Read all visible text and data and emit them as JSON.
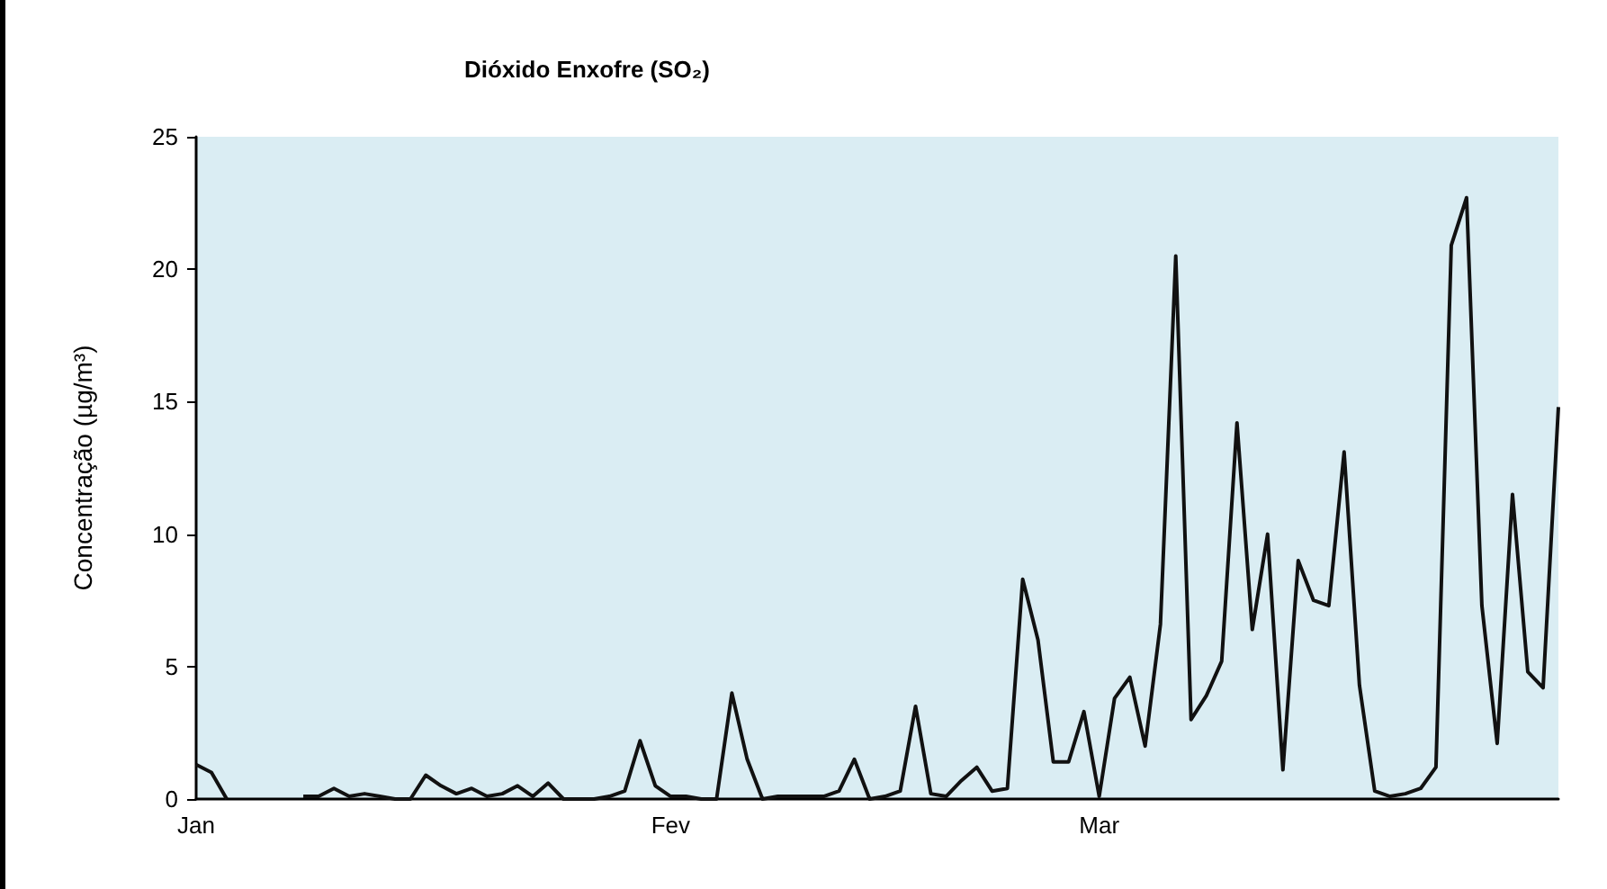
{
  "chart_data": {
    "type": "line",
    "title": "Dióxido Enxofre (SO₂)",
    "ylabel": "Concentração (µg/m³)",
    "categories": [
      "Jan",
      null,
      null,
      null,
      null,
      null,
      null,
      null,
      null,
      null,
      null,
      null,
      null,
      null,
      null,
      null,
      null,
      null,
      null,
      null,
      null,
      null,
      null,
      null,
      null,
      null,
      null,
      null,
      null,
      null,
      null,
      "Fev",
      null,
      null,
      null,
      null,
      null,
      null,
      null,
      null,
      null,
      null,
      null,
      null,
      null,
      null,
      null,
      null,
      null,
      null,
      null,
      null,
      null,
      null,
      null,
      null,
      null,
      null,
      null,
      "Mar",
      null,
      null,
      null,
      null,
      null,
      null,
      null,
      null,
      null,
      null,
      null,
      null,
      null,
      null,
      null,
      null,
      null,
      null,
      null,
      null,
      null,
      null,
      null,
      null,
      null,
      null,
      null,
      null,
      null,
      null
    ],
    "series": [
      {
        "color": "#111111",
        "values": [
          1.3,
          1.0,
          0,
          null,
          null,
          null,
          null,
          0.1,
          0.1,
          0.4,
          0.1,
          0.2,
          0.1,
          0,
          0,
          0.9,
          0.5,
          0.2,
          0.4,
          0.1,
          0.2,
          0.5,
          0.1,
          0.6,
          0,
          0,
          0,
          0.1,
          0.3,
          2.2,
          0.5,
          0.1,
          0.1,
          0,
          0,
          4.0,
          1.5,
          0,
          0.1,
          0.1,
          0.1,
          0.1,
          0.3,
          1.5,
          0,
          0.1,
          0.3,
          3.5,
          0.2,
          0.1,
          0.7,
          1.2,
          0.3,
          0.4,
          8.3,
          6.0,
          1.4,
          1.4,
          3.3,
          0.1,
          3.8,
          4.6,
          2.0,
          6.6,
          20.5,
          3.0,
          3.9,
          5.2,
          14.2,
          6.4,
          10.0,
          1.1,
          9.0,
          7.5,
          7.3,
          13.1,
          4.3,
          0.3,
          0.1,
          0.2,
          0.4,
          1.2,
          20.9,
          22.7,
          7.3,
          2.1,
          11.5,
          4.8,
          4.2,
          14.8
        ]
      }
    ],
    "ylim": [
      0,
      25
    ],
    "yticks": [
      0,
      5,
      10,
      15,
      20,
      25
    ],
    "grid": false,
    "marker": "none",
    "line_style": "solid"
  }
}
